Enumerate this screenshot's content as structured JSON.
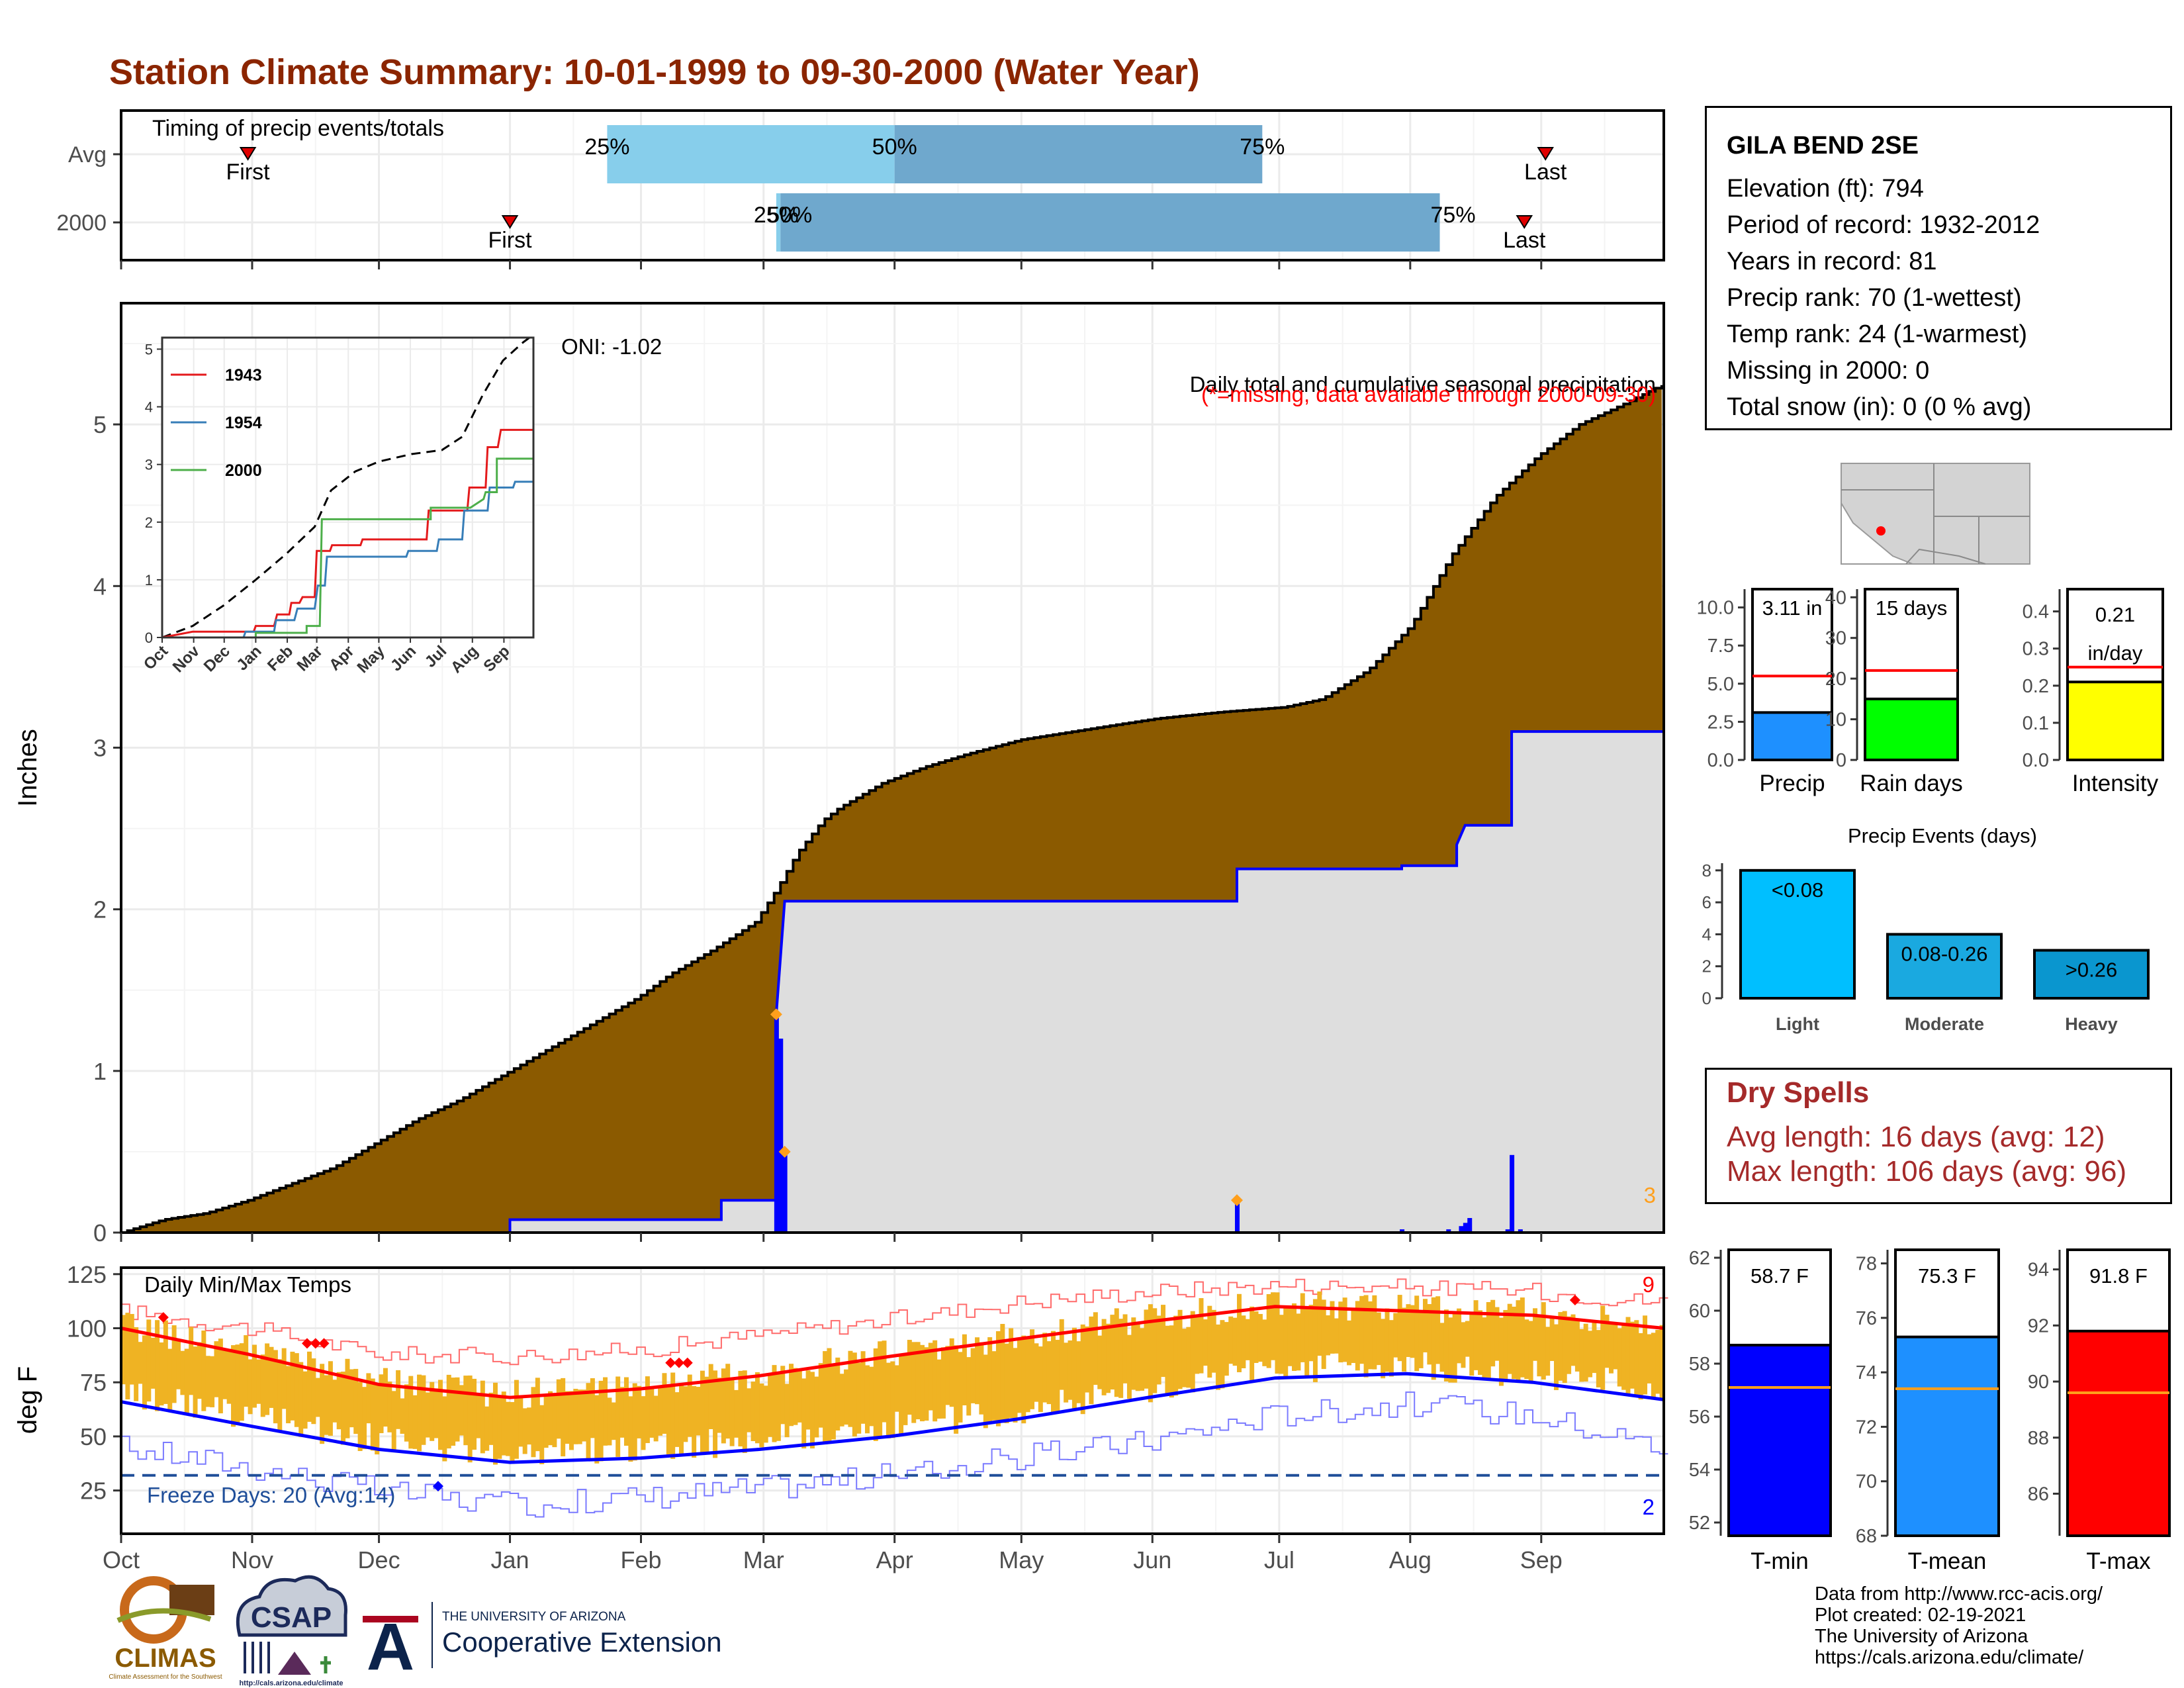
{
  "page": {
    "title": "Station Climate Summary: 10-01-1999 to 09-30-2000 (Water Year)"
  },
  "station": {
    "name": "GILA BEND 2SE",
    "lines": [
      "Elevation (ft): 794",
      "Period of record: 1932-2012",
      "Years in record: 81",
      "Precip rank: 70 (1-wettest)",
      "Temp rank: 24 (1-warmest)",
      "Missing in 2000: 0",
      "Total snow (in): 0 (0 % avg)"
    ]
  },
  "dry_spells": {
    "title": "Dry Spells",
    "avg": "Avg length: 16 days (avg: 12)",
    "max": "Max length: 106 days (avg: 96)"
  },
  "credits": [
    "Data from http://www.rcc-acis.org/",
    "Plot created: 02-19-2021",
    "The University of Arizona",
    "https://cals.arizona.edu/climate/"
  ],
  "logos": {
    "climas": "CLIMAS",
    "climas_sub": "Climate Assessment for the Southwest",
    "csap": "CSAP",
    "csap_url": "http://cals.arizona.edu/climate",
    "ua_small": "THE UNIVERSITY OF ARIZONA",
    "ua_main": "Cooperative Extension",
    "ua_letter": "A"
  },
  "colors": {
    "title": "#8b2500",
    "cumulative_avg_fill": "#8b5a00",
    "cumulative_obs_fill": "#dedede",
    "observed_line": "#0000ff",
    "timing_light": "#87ceeb",
    "timing_dark": "#6fa8cd",
    "temp_bars": "#efb323",
    "normal_max": "#ff0000",
    "normal_min": "#0000ff",
    "dry_spells": "#a52a2a",
    "marker_orange": "#ff9f1c"
  },
  "chart_data": [
    {
      "id": "timing",
      "type": "bar",
      "title": "Timing of precip events/totals",
      "categories": [
        "Avg",
        "2000"
      ],
      "x_ticks": [
        "Oct",
        "Nov",
        "Dec",
        "Jan",
        "Feb",
        "Mar",
        "Apr",
        "May",
        "Jun",
        "Jul",
        "Aug",
        "Sep"
      ],
      "rows": [
        {
          "name": "Avg",
          "first_day": 30,
          "last_day": 337,
          "p25_day": 115,
          "p50_day": 183,
          "p75_day": 270,
          "labels": {
            "p25": "25%",
            "p50": "50%",
            "p75": "75%",
            "first": "First",
            "last": "Last"
          }
        },
        {
          "name": "2000",
          "first_day": 92,
          "last_day": 332,
          "p25_day": 155,
          "p50_day": 156,
          "p75_day": 312,
          "labels": {
            "p25": "25%",
            "p50": "50%",
            "p75": "75%",
            "first": "First",
            "last": "Last"
          }
        }
      ]
    },
    {
      "id": "precip_main",
      "type": "area",
      "title": "Daily total and cumulative seasonal precipitation",
      "subtitle": "(*=missing, data available through 2000-09-30)",
      "ylabel": "Inches",
      "ylim": [
        0,
        5.75
      ],
      "y_ticks": [
        0,
        1,
        2,
        3,
        4,
        5
      ],
      "x_ticks": [
        "Oct",
        "Nov",
        "Dec",
        "Jan",
        "Feb",
        "Mar",
        "Apr",
        "May",
        "Jun",
        "Jul",
        "Aug",
        "Sep"
      ],
      "oni": "ONI: -1.02",
      "corner_count": "3",
      "avg_cumulative": [
        [
          0,
          0
        ],
        [
          10,
          0.08
        ],
        [
          20,
          0.12
        ],
        [
          30,
          0.2
        ],
        [
          40,
          0.3
        ],
        [
          50,
          0.4
        ],
        [
          60,
          0.55
        ],
        [
          70,
          0.7
        ],
        [
          80,
          0.82
        ],
        [
          92,
          1.0
        ],
        [
          100,
          1.12
        ],
        [
          110,
          1.27
        ],
        [
          122,
          1.45
        ],
        [
          130,
          1.6
        ],
        [
          140,
          1.75
        ],
        [
          150,
          1.92
        ],
        [
          155,
          2.12
        ],
        [
          160,
          2.35
        ],
        [
          166,
          2.55
        ],
        [
          170,
          2.63
        ],
        [
          180,
          2.78
        ],
        [
          190,
          2.88
        ],
        [
          200,
          2.96
        ],
        [
          213,
          3.05
        ],
        [
          230,
          3.12
        ],
        [
          245,
          3.18
        ],
        [
          260,
          3.22
        ],
        [
          275,
          3.25
        ],
        [
          284,
          3.3
        ],
        [
          295,
          3.48
        ],
        [
          305,
          3.75
        ],
        [
          315,
          4.2
        ],
        [
          325,
          4.55
        ],
        [
          335,
          4.8
        ],
        [
          345,
          5.0
        ],
        [
          355,
          5.12
        ],
        [
          365,
          5.25
        ]
      ],
      "observed_cumulative": [
        [
          0,
          0
        ],
        [
          92,
          0
        ],
        [
          92,
          0.08
        ],
        [
          142,
          0.08
        ],
        [
          142,
          0.2
        ],
        [
          155,
          0.2
        ],
        [
          155,
          1.35
        ],
        [
          157,
          2.05
        ],
        [
          264,
          2.05
        ],
        [
          264,
          2.25
        ],
        [
          303,
          2.25
        ],
        [
          303,
          2.27
        ],
        [
          316,
          2.27
        ],
        [
          316,
          2.4
        ],
        [
          318,
          2.52
        ],
        [
          329,
          2.52
        ],
        [
          329,
          3.1
        ],
        [
          365,
          3.1
        ]
      ],
      "daily_bars": [
        [
          155,
          1.35
        ],
        [
          156,
          1.2
        ],
        [
          157,
          0.5
        ],
        [
          264,
          0.2
        ],
        [
          303,
          0.02
        ],
        [
          314,
          0.02
        ],
        [
          317,
          0.04
        ],
        [
          318,
          0.06
        ],
        [
          319,
          0.09
        ],
        [
          328,
          0.02
        ],
        [
          329,
          0.48
        ],
        [
          331,
          0.02
        ]
      ],
      "missing_markers": [
        [
          155,
          1.35
        ],
        [
          157,
          0.5
        ],
        [
          264,
          0.2
        ]
      ]
    },
    {
      "id": "inset_cumulative",
      "type": "line",
      "x_ticks": [
        "Oct",
        "Nov",
        "Dec",
        "Jan",
        "Feb",
        "Mar",
        "Apr",
        "May",
        "Jun",
        "Jul",
        "Aug",
        "Sep"
      ],
      "y_ticks": [
        0,
        1,
        2,
        3,
        4,
        5
      ],
      "ylim": [
        0,
        5.2
      ],
      "series": [
        {
          "name": "1943",
          "color": "#e41a1c",
          "values": [
            [
              0,
              0
            ],
            [
              30,
              0.1
            ],
            [
              90,
              0.1
            ],
            [
              92,
              0.2
            ],
            [
              110,
              0.2
            ],
            [
              113,
              0.4
            ],
            [
              125,
              0.4
            ],
            [
              127,
              0.6
            ],
            [
              135,
              0.6
            ],
            [
              138,
              0.7
            ],
            [
              150,
              0.7
            ],
            [
              152,
              1.5
            ],
            [
              165,
              1.5
            ],
            [
              167,
              1.6
            ],
            [
              195,
              1.6
            ],
            [
              197,
              1.7
            ],
            [
              260,
              1.7
            ],
            [
              262,
              2.2
            ],
            [
              300,
              2.2
            ],
            [
              302,
              2.6
            ],
            [
              318,
              2.6
            ],
            [
              320,
              3.3
            ],
            [
              330,
              3.3
            ],
            [
              333,
              3.6
            ],
            [
              365,
              3.6
            ]
          ]
        },
        {
          "name": "1954",
          "color": "#377eb8",
          "values": [
            [
              0,
              0
            ],
            [
              80,
              0
            ],
            [
              82,
              0.1
            ],
            [
              110,
              0.1
            ],
            [
              112,
              0.3
            ],
            [
              130,
              0.3
            ],
            [
              133,
              0.5
            ],
            [
              150,
              0.5
            ],
            [
              153,
              0.9
            ],
            [
              160,
              0.9
            ],
            [
              162,
              1.4
            ],
            [
              240,
              1.4
            ],
            [
              242,
              1.5
            ],
            [
              270,
              1.5
            ],
            [
              272,
              1.7
            ],
            [
              295,
              1.7
            ],
            [
              297,
              2.2
            ],
            [
              320,
              2.2
            ],
            [
              322,
              2.6
            ],
            [
              345,
              2.6
            ],
            [
              347,
              2.7
            ],
            [
              365,
              2.7
            ]
          ]
        },
        {
          "name": "2000",
          "color": "#4daf4a",
          "values": [
            [
              0,
              0
            ],
            [
              92,
              0
            ],
            [
              92,
              0.08
            ],
            [
              142,
              0.08
            ],
            [
              142,
              0.2
            ],
            [
              155,
              0.2
            ],
            [
              157,
              2.05
            ],
            [
              264,
              2.05
            ],
            [
              264,
              2.25
            ],
            [
              303,
              2.25
            ],
            [
              316,
              2.4
            ],
            [
              318,
              2.52
            ],
            [
              329,
              2.52
            ],
            [
              329,
              3.1
            ],
            [
              365,
              3.1
            ]
          ]
        }
      ],
      "avg_line": [
        [
          0,
          0
        ],
        [
          30,
          0.2
        ],
        [
          60,
          0.55
        ],
        [
          92,
          1.0
        ],
        [
          122,
          1.45
        ],
        [
          150,
          1.92
        ],
        [
          166,
          2.55
        ],
        [
          190,
          2.88
        ],
        [
          213,
          3.05
        ],
        [
          245,
          3.18
        ],
        [
          275,
          3.25
        ],
        [
          295,
          3.48
        ],
        [
          315,
          4.2
        ],
        [
          335,
          4.8
        ],
        [
          355,
          5.12
        ],
        [
          365,
          5.25
        ]
      ]
    },
    {
      "id": "bars_precip",
      "type": "bar",
      "xlabel": "Precip",
      "label": "3.11 in",
      "value": 3.11,
      "avg": 5.5,
      "ylim": [
        0,
        11.2
      ],
      "y_ticks": [
        "0.0",
        "2.5",
        "5.0",
        "7.5",
        "10.0"
      ],
      "color": "#1e90ff"
    },
    {
      "id": "bars_raindays",
      "type": "bar",
      "xlabel": "Rain days",
      "label": "15 days",
      "value": 15,
      "avg": 22,
      "ylim": [
        0,
        42
      ],
      "y_ticks": [
        "0",
        "10",
        "20",
        "30",
        "40"
      ],
      "color": "#00ff00"
    },
    {
      "id": "bars_intensity",
      "type": "bar",
      "xlabel": "Intensity",
      "label": [
        "0.21",
        "in/day"
      ],
      "value": 0.21,
      "avg": 0.25,
      "ylim": [
        0,
        0.46
      ],
      "y_ticks": [
        "0.0",
        "0.1",
        "0.2",
        "0.3",
        "0.4"
      ],
      "color": "#ffff00"
    },
    {
      "id": "precip_events",
      "type": "bar",
      "title": "Precip Events (days)",
      "categories": [
        "Light",
        "Moderate",
        "Heavy"
      ],
      "labels": [
        "<0.08",
        "0.08-0.26",
        ">0.26"
      ],
      "values": [
        8,
        4,
        3
      ],
      "ylim": [
        0,
        8.2
      ],
      "y_ticks": [
        "0",
        "2",
        "4",
        "6",
        "8"
      ],
      "colors": [
        "#00bfff",
        "#1aa9e0",
        "#0a96cf"
      ]
    },
    {
      "id": "temps",
      "type": "bar",
      "title": "Daily Min/Max Temps",
      "ylabel": "deg F",
      "ylim": [
        5,
        128
      ],
      "y_ticks": [
        25,
        50,
        75,
        100,
        125
      ],
      "x_ticks": [
        "Oct",
        "Nov",
        "Dec",
        "Jan",
        "Feb",
        "Mar",
        "Apr",
        "May",
        "Jun",
        "Jul",
        "Aug",
        "Sep"
      ],
      "freeze_line": 32,
      "freeze_label": "Freeze Days: 20 (Avg:14)",
      "count_hot": "9",
      "count_cold": "2",
      "normal_max": [
        [
          0,
          100
        ],
        [
          30,
          88
        ],
        [
          61,
          74
        ],
        [
          92,
          68
        ],
        [
          123,
          72
        ],
        [
          151,
          78
        ],
        [
          182,
          87
        ],
        [
          212,
          95
        ],
        [
          243,
          103
        ],
        [
          273,
          110
        ],
        [
          304,
          108
        ],
        [
          334,
          106
        ],
        [
          365,
          100
        ]
      ],
      "normal_min": [
        [
          0,
          66
        ],
        [
          30,
          55
        ],
        [
          61,
          44
        ],
        [
          92,
          38
        ],
        [
          123,
          40
        ],
        [
          151,
          44
        ],
        [
          182,
          50
        ],
        [
          212,
          58
        ],
        [
          243,
          68
        ],
        [
          273,
          77
        ],
        [
          304,
          79
        ],
        [
          334,
          75
        ],
        [
          365,
          67
        ]
      ],
      "record_max": [
        [
          0,
          108
        ],
        [
          30,
          100
        ],
        [
          61,
          88
        ],
        [
          92,
          87
        ],
        [
          123,
          90
        ],
        [
          151,
          97
        ],
        [
          182,
          104
        ],
        [
          212,
          112
        ],
        [
          243,
          117
        ],
        [
          273,
          120
        ],
        [
          304,
          119
        ],
        [
          334,
          117
        ],
        [
          365,
          112
        ]
      ],
      "record_min": [
        [
          0,
          45
        ],
        [
          30,
          36
        ],
        [
          61,
          25
        ],
        [
          92,
          18
        ],
        [
          123,
          22
        ],
        [
          151,
          26
        ],
        [
          182,
          32
        ],
        [
          212,
          40
        ],
        [
          243,
          48
        ],
        [
          273,
          60
        ],
        [
          304,
          65
        ],
        [
          334,
          60
        ],
        [
          365,
          45
        ]
      ],
      "record_max_markers": [
        [
          10,
          105
        ],
        [
          44,
          93
        ],
        [
          46,
          93
        ],
        [
          48,
          93
        ],
        [
          130,
          84
        ],
        [
          132,
          84
        ],
        [
          134,
          84
        ],
        [
          344,
          113
        ]
      ],
      "record_min_markers": [
        [
          75,
          27
        ]
      ]
    },
    {
      "id": "tmin",
      "type": "bar",
      "xlabel": "T-min",
      "label": "58.7 F",
      "value": 58.7,
      "avg": 57.1,
      "ylim": [
        51.5,
        62.3
      ],
      "y_ticks": [
        "52",
        "54",
        "56",
        "58",
        "60",
        "62"
      ],
      "color": "#0000ff"
    },
    {
      "id": "tmean",
      "type": "bar",
      "xlabel": "T-mean",
      "label": "75.3 F",
      "value": 75.3,
      "avg": 73.4,
      "ylim": [
        68,
        78.5
      ],
      "y_ticks": [
        "68",
        "70",
        "72",
        "74",
        "76",
        "78"
      ],
      "color": "#1e90ff"
    },
    {
      "id": "tmax",
      "type": "bar",
      "xlabel": "T-max",
      "label": "91.8 F",
      "value": 91.8,
      "avg": 89.6,
      "ylim": [
        84.5,
        94.7
      ],
      "y_ticks": [
        "86",
        "88",
        "90",
        "92",
        "94"
      ],
      "color": "#ff0000"
    }
  ]
}
